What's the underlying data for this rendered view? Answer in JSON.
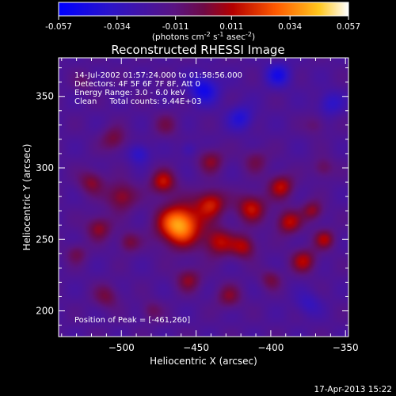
{
  "chart_data": {
    "type": "heatmap",
    "title": "Reconstructed RHESSI Image",
    "colorbar": {
      "min": -0.057,
      "max": 0.057,
      "ticks": [
        "-0.057",
        "-0.034",
        "-0.011",
        "0.011",
        "0.034",
        "0.057"
      ],
      "tick_values": [
        -0.057,
        -0.034,
        -0.011,
        0.011,
        0.034,
        0.057
      ],
      "units_prefix": "(photons cm",
      "units_exp1": "-2",
      "units_mid": " s",
      "units_exp2": "-1",
      "units_mid2": " asec",
      "units_exp3": "-2",
      "units_suffix": ")"
    },
    "xlabel": "Heliocentric X (arcsec)",
    "ylabel": "Heliocentric Y (arcsec)",
    "xlim": [
      -542,
      -348
    ],
    "ylim": [
      182,
      377
    ],
    "x_ticks": [
      -500,
      -450,
      -400,
      -350
    ],
    "y_ticks": [
      200,
      250,
      300,
      350
    ],
    "info_lines": [
      "14-Jul-2002 01:57:24.000 to 01:58:56.000",
      "Detectors: 4F 5F 6F 7F 8F, Att 0",
      "Energy Range: 3.0 - 6.0 keV",
      "Clean     Total counts: 9.44E+03"
    ],
    "peak_label": "Position of Peak = [-461,260]",
    "peak": {
      "x": -461,
      "y": 260
    },
    "grid": false,
    "sources": [
      {
        "x": -461,
        "y": 260,
        "amp": 0.06,
        "sigma": 10
      },
      {
        "x": -472,
        "y": 290,
        "amp": 0.032,
        "sigma": 6
      },
      {
        "x": -440,
        "y": 275,
        "amp": 0.034,
        "sigma": 7
      },
      {
        "x": -435,
        "y": 248,
        "amp": 0.03,
        "sigma": 7
      },
      {
        "x": -413,
        "y": 272,
        "amp": 0.032,
        "sigma": 7
      },
      {
        "x": -418,
        "y": 245,
        "amp": 0.028,
        "sigma": 6
      },
      {
        "x": -393,
        "y": 287,
        "amp": 0.03,
        "sigma": 6
      },
      {
        "x": -388,
        "y": 262,
        "amp": 0.03,
        "sigma": 6
      },
      {
        "x": -378,
        "y": 235,
        "amp": 0.028,
        "sigma": 6
      },
      {
        "x": -372,
        "y": 270,
        "amp": 0.024,
        "sigma": 5
      },
      {
        "x": -364,
        "y": 250,
        "amp": 0.026,
        "sigma": 5
      },
      {
        "x": -500,
        "y": 280,
        "amp": 0.026,
        "sigma": 7
      },
      {
        "x": -515,
        "y": 258,
        "amp": 0.024,
        "sigma": 6
      },
      {
        "x": -495,
        "y": 248,
        "amp": 0.02,
        "sigma": 5
      },
      {
        "x": -520,
        "y": 290,
        "amp": 0.022,
        "sigma": 6
      },
      {
        "x": -505,
        "y": 320,
        "amp": 0.02,
        "sigma": 6
      },
      {
        "x": -470,
        "y": 330,
        "amp": 0.014,
        "sigma": 6
      },
      {
        "x": -440,
        "y": 305,
        "amp": 0.022,
        "sigma": 6
      },
      {
        "x": -410,
        "y": 305,
        "amp": 0.016,
        "sigma": 6
      },
      {
        "x": -455,
        "y": 222,
        "amp": 0.022,
        "sigma": 6
      },
      {
        "x": -428,
        "y": 210,
        "amp": 0.02,
        "sigma": 6
      },
      {
        "x": -400,
        "y": 222,
        "amp": 0.018,
        "sigma": 5
      },
      {
        "x": -510,
        "y": 210,
        "amp": 0.018,
        "sigma": 6
      },
      {
        "x": -480,
        "y": 200,
        "amp": 0.014,
        "sigma": 5
      },
      {
        "x": -530,
        "y": 240,
        "amp": 0.016,
        "sigma": 5
      },
      {
        "x": -365,
        "y": 300,
        "amp": 0.016,
        "sigma": 5
      },
      {
        "x": -370,
        "y": 330,
        "amp": 0.012,
        "sigma": 5
      },
      {
        "x": -525,
        "y": 360,
        "amp": 0.01,
        "sigma": 5
      },
      {
        "x": -445,
        "y": 355,
        "amp": -0.03,
        "sigma": 7
      },
      {
        "x": -395,
        "y": 365,
        "amp": -0.026,
        "sigma": 6
      },
      {
        "x": -420,
        "y": 335,
        "amp": -0.022,
        "sigma": 6
      },
      {
        "x": -488,
        "y": 310,
        "amp": -0.02,
        "sigma": 5
      },
      {
        "x": -455,
        "y": 313,
        "amp": -0.012,
        "sigma": 4
      },
      {
        "x": -360,
        "y": 345,
        "amp": -0.018,
        "sigma": 6
      },
      {
        "x": -375,
        "y": 205,
        "amp": -0.014,
        "sigma": 6
      }
    ]
  },
  "footer": {
    "timestamp": "17-Apr-2013 15:22"
  }
}
